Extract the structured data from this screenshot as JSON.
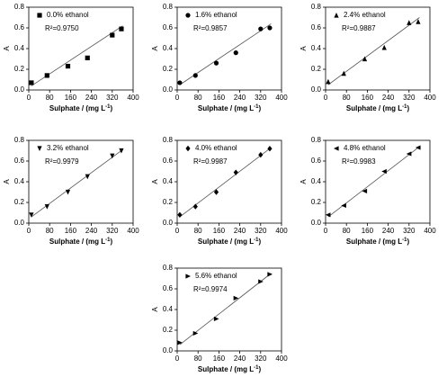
{
  "chart_data": [
    {
      "type": "scatter",
      "legend": "0.0% ethanol",
      "r2": "R²=0.9750",
      "marker": "square",
      "color": "#000000",
      "x_label": "Sulphate / (mg L",
      "x_label_sup": "-1",
      "x_label_end": ")",
      "y_label": "A",
      "x": [
        10,
        70,
        150,
        225,
        320,
        355
      ],
      "values": [
        0.07,
        0.14,
        0.23,
        0.31,
        0.53,
        0.59
      ],
      "fit_x": [
        10,
        360
      ],
      "fit_y": [
        0.04,
        0.62
      ],
      "xlim": [
        0,
        400
      ],
      "xticks": [
        0,
        80,
        160,
        240,
        320,
        400
      ],
      "ylim": [
        0,
        0.8
      ],
      "yticks": [
        {
          "value": 0,
          "label": "0.0"
        },
        0.2,
        0.4,
        0.6,
        0.8
      ]
    },
    {
      "type": "scatter",
      "legend": "1.6% ethanol",
      "r2": "R²=0.9857",
      "marker": "circle",
      "color": "#000000",
      "x_label": "Sulphate / (mg L",
      "x_label_sup": "-1",
      "x_label_end": ")",
      "y_label": "A",
      "x": [
        10,
        70,
        150,
        225,
        320,
        355
      ],
      "values": [
        0.07,
        0.14,
        0.26,
        0.36,
        0.59,
        0.6
      ],
      "fit_x": [
        10,
        360
      ],
      "fit_y": [
        0.05,
        0.64
      ],
      "xlim": [
        0,
        400
      ],
      "xticks": [
        0,
        80,
        160,
        240,
        320,
        400
      ],
      "ylim": [
        0,
        0.8
      ],
      "yticks": [
        {
          "value": 0,
          "label": "0.0"
        },
        0.2,
        0.4,
        0.6,
        0.8
      ]
    },
    {
      "type": "scatter",
      "legend": "2.4% ethanol",
      "r2": "R²=0.9887",
      "marker": "triangle-up",
      "color": "#000000",
      "x_label": "Sulphate / (mg L",
      "x_label_sup": "-1",
      "x_label_end": ")",
      "y_label": "A",
      "x": [
        10,
        70,
        150,
        225,
        320,
        355
      ],
      "values": [
        0.08,
        0.16,
        0.3,
        0.41,
        0.65,
        0.66
      ],
      "fit_x": [
        10,
        360
      ],
      "fit_y": [
        0.05,
        0.7
      ],
      "xlim": [
        0,
        400
      ],
      "xticks": [
        0,
        80,
        160,
        240,
        320,
        400
      ],
      "ylim": [
        0,
        0.8
      ],
      "yticks": [
        {
          "value": 0,
          "label": "0.0"
        },
        0.2,
        0.4,
        0.6,
        0.8
      ]
    },
    {
      "type": "scatter",
      "legend": "3.2% ethanol",
      "r2": "R²=0.9979",
      "marker": "triangle-down",
      "color": "#000000",
      "x_label": "Sulphate / (mg L",
      "x_label_sup": "-1",
      "x_label_end": ")",
      "y_label": "A",
      "x": [
        10,
        70,
        150,
        225,
        320,
        355
      ],
      "values": [
        0.08,
        0.16,
        0.3,
        0.45,
        0.65,
        0.7
      ],
      "fit_x": [
        10,
        360
      ],
      "fit_y": [
        0.06,
        0.71
      ],
      "xlim": [
        0,
        400
      ],
      "xticks": [
        0,
        80,
        160,
        240,
        320,
        400
      ],
      "ylim": [
        0,
        0.8
      ],
      "yticks": [
        {
          "value": 0,
          "label": "0.0"
        },
        0.2,
        0.4,
        0.6,
        0.8
      ]
    },
    {
      "type": "scatter",
      "legend": "4.0% ethanol",
      "r2": "R²=0.9987",
      "marker": "diamond",
      "color": "#000000",
      "x_label": "Sulphate / (mg L",
      "x_label_sup": "-1",
      "x_label_end": ")",
      "y_label": "A",
      "x": [
        10,
        70,
        150,
        225,
        320,
        355
      ],
      "values": [
        0.08,
        0.16,
        0.3,
        0.49,
        0.66,
        0.72
      ],
      "fit_x": [
        10,
        360
      ],
      "fit_y": [
        0.06,
        0.73
      ],
      "xlim": [
        0,
        400
      ],
      "xticks": [
        0,
        80,
        160,
        240,
        320,
        400
      ],
      "ylim": [
        0,
        0.8
      ],
      "yticks": [
        {
          "value": 0,
          "label": "0.0"
        },
        0.2,
        0.4,
        0.6,
        0.8
      ]
    },
    {
      "type": "scatter",
      "legend": "4.8% ethanol",
      "r2": "R²=0.9983",
      "marker": "triangle-left",
      "color": "#000000",
      "x_label": "Sulphate / (mg L",
      "x_label_sup": "-1",
      "x_label_end": ")",
      "y_label": "A",
      "x": [
        10,
        70,
        150,
        225,
        320,
        355
      ],
      "values": [
        0.08,
        0.17,
        0.31,
        0.5,
        0.67,
        0.73
      ],
      "fit_x": [
        10,
        360
      ],
      "fit_y": [
        0.06,
        0.74
      ],
      "xlim": [
        0,
        400
      ],
      "xticks": [
        0,
        80,
        160,
        240,
        320,
        400
      ],
      "ylim": [
        0,
        0.8
      ],
      "yticks": [
        {
          "value": 0,
          "label": "0.0"
        },
        0.2,
        0.4,
        0.6,
        0.8
      ]
    },
    {
      "type": "scatter",
      "legend": "5.6% ethanol",
      "r2": "R²=0.9974",
      "marker": "triangle-right",
      "color": "#000000",
      "x_label": "Sulphate / (mg L",
      "x_label_sup": "-1",
      "x_label_end": ")",
      "y_label": "A",
      "x": [
        10,
        70,
        150,
        225,
        320,
        355
      ],
      "values": [
        0.08,
        0.17,
        0.31,
        0.51,
        0.67,
        0.74
      ],
      "fit_x": [
        10,
        360
      ],
      "fit_y": [
        0.06,
        0.75
      ],
      "xlim": [
        0,
        400
      ],
      "xticks": [
        0,
        80,
        160,
        240,
        320,
        400
      ],
      "ylim": [
        0,
        0.8
      ],
      "yticks": [
        {
          "value": 0,
          "label": "0.0"
        },
        0.2,
        0.4,
        0.6,
        0.8
      ]
    }
  ]
}
